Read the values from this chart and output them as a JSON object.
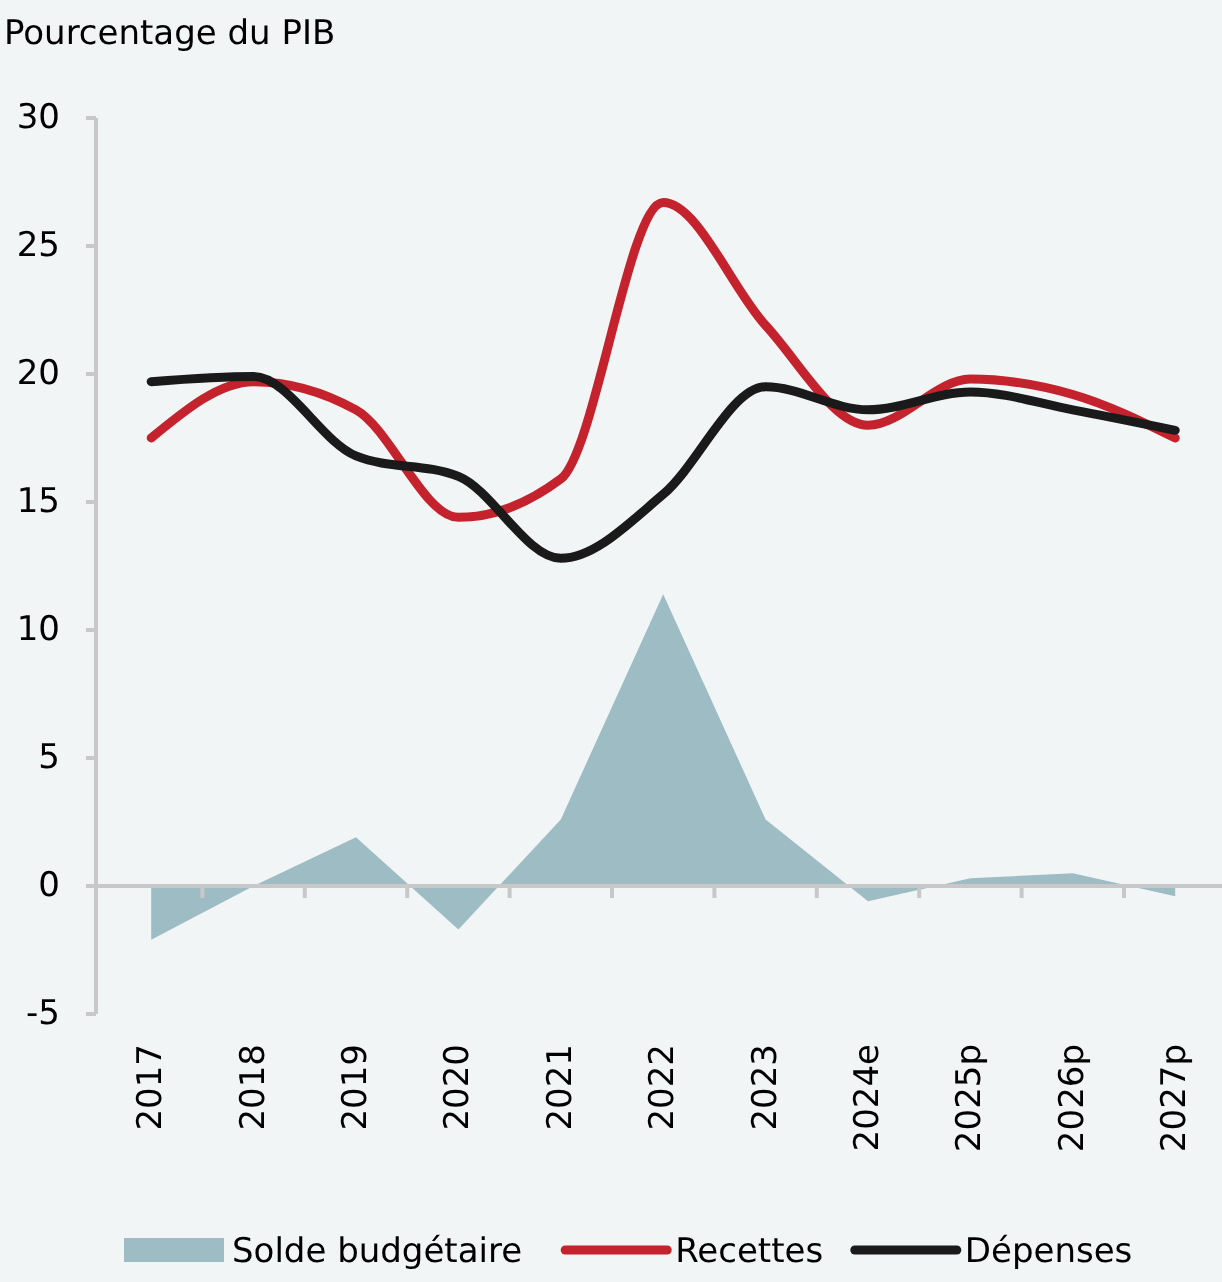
{
  "chart_data": {
    "type": "line",
    "ylabel": "Pourcentage du PIB",
    "categories": [
      "2017",
      "2018",
      "2019",
      "2020",
      "2021",
      "2022",
      "2023",
      "2024e",
      "2025p",
      "2026p",
      "2027p"
    ],
    "series": [
      {
        "name": "Solde budgétaire",
        "type": "area",
        "color": "#9dbcc4",
        "values": [
          -2.1,
          0,
          1.9,
          -1.7,
          2.6,
          11.4,
          2.6,
          -0.6,
          0.3,
          0.5,
          -0.4
        ]
      },
      {
        "name": "Recettes",
        "color": "#c4232d",
        "values": [
          17.5,
          19.7,
          18.6,
          14.4,
          15.9,
          26.7,
          21.9,
          18.0,
          19.8,
          19.2,
          17.5
        ]
      },
      {
        "name": "Dépenses",
        "color": "#1a1a1a",
        "values": [
          19.7,
          19.9,
          16.8,
          16.0,
          12.8,
          15.3,
          19.5,
          18.6,
          19.3,
          18.6,
          17.8
        ]
      }
    ],
    "ylim": [
      -5,
      30
    ],
    "yticks": [
      -5,
      0,
      5,
      10,
      15,
      20,
      25,
      30
    ],
    "legend": "bottom"
  }
}
